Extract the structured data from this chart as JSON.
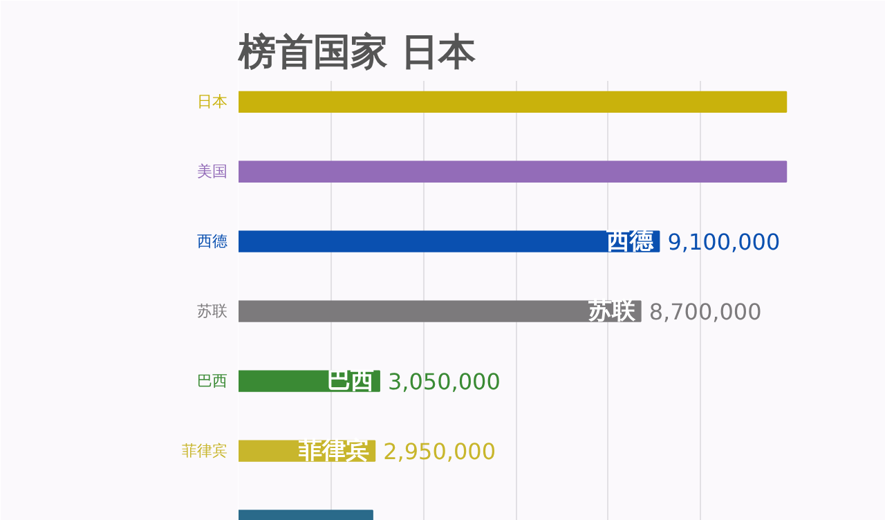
{
  "chart_data": {
    "type": "bar",
    "orientation": "horizontal",
    "title": "榜首国家  日本",
    "categories": [
      "日本",
      "美国",
      "西德",
      "苏联",
      "巴西",
      "菲律宾",
      null
    ],
    "values": [
      11850000,
      11850000,
      9100000,
      8700000,
      3050000,
      2950000,
      2900000
    ],
    "colors": [
      "#c9b20c",
      "#936cb8",
      "#0a50b0",
      "#7c7a7c",
      "#3a8a34",
      "#c8b62c",
      "#2a6a8a"
    ],
    "value_labels": [
      null,
      null,
      "9,100,000",
      "8,700,000",
      "3,050,000",
      "2,950,000",
      null
    ],
    "xlim": [
      0,
      14000000
    ],
    "xticks": [
      {
        "value": 0,
        "label": null
      },
      {
        "value": 2000000,
        "label": null
      },
      {
        "value": 4000000,
        "label": null
      },
      {
        "value": 6000000,
        "label": null
      },
      {
        "value": 8000000,
        "label": null
      },
      {
        "value": 10000000,
        "label": null
      }
    ],
    "grid": "x",
    "tick_labels": false
  }
}
